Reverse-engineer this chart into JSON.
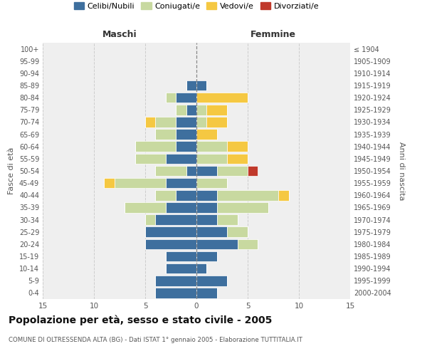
{
  "age_groups_bottom_to_top": [
    "0-4",
    "5-9",
    "10-14",
    "15-19",
    "20-24",
    "25-29",
    "30-34",
    "35-39",
    "40-44",
    "45-49",
    "50-54",
    "55-59",
    "60-64",
    "65-69",
    "70-74",
    "75-79",
    "80-84",
    "85-89",
    "90-94",
    "95-99",
    "100+"
  ],
  "birth_years_bottom_to_top": [
    "2000-2004",
    "1995-1999",
    "1990-1994",
    "1985-1989",
    "1980-1984",
    "1975-1979",
    "1970-1974",
    "1965-1969",
    "1960-1964",
    "1955-1959",
    "1950-1954",
    "1945-1949",
    "1940-1944",
    "1935-1939",
    "1930-1934",
    "1925-1929",
    "1920-1924",
    "1915-1919",
    "1910-1914",
    "1905-1909",
    "≤ 1904"
  ],
  "maschi": {
    "celibi": [
      4,
      4,
      3,
      3,
      5,
      5,
      4,
      3,
      2,
      3,
      1,
      3,
      2,
      2,
      2,
      1,
      2,
      1,
      0,
      0,
      0
    ],
    "coniugati": [
      0,
      0,
      0,
      0,
      0,
      0,
      1,
      4,
      2,
      5,
      3,
      3,
      4,
      2,
      2,
      1,
      1,
      0,
      0,
      0,
      0
    ],
    "vedovi": [
      0,
      0,
      0,
      0,
      0,
      0,
      0,
      0,
      0,
      1,
      0,
      0,
      0,
      0,
      1,
      0,
      0,
      0,
      0,
      0,
      0
    ],
    "divorziati": [
      0,
      0,
      0,
      0,
      0,
      0,
      0,
      0,
      0,
      0,
      0,
      0,
      0,
      0,
      0,
      0,
      0,
      0,
      0,
      0,
      0
    ]
  },
  "femmine": {
    "celibi": [
      2,
      3,
      1,
      2,
      4,
      3,
      2,
      2,
      2,
      0,
      2,
      0,
      0,
      0,
      0,
      0,
      0,
      1,
      0,
      0,
      0
    ],
    "coniugati": [
      0,
      0,
      0,
      0,
      2,
      2,
      2,
      5,
      6,
      3,
      3,
      3,
      3,
      0,
      1,
      1,
      0,
      0,
      0,
      0,
      0
    ],
    "vedovi": [
      0,
      0,
      0,
      0,
      0,
      0,
      0,
      0,
      1,
      0,
      0,
      2,
      2,
      2,
      2,
      2,
      5,
      0,
      0,
      0,
      0
    ],
    "divorziati": [
      0,
      0,
      0,
      0,
      0,
      0,
      0,
      0,
      0,
      0,
      1,
      0,
      0,
      0,
      0,
      0,
      0,
      0,
      0,
      0,
      0
    ]
  },
  "color_celibi": "#3e6f9e",
  "color_coniugati": "#c8d9a0",
  "color_vedovi": "#f5c842",
  "color_divorziati": "#c0392b",
  "xlim": 15,
  "title": "Popolazione per età, sesso e stato civile - 2005",
  "subtitle": "COMUNE DI OLTRESSENDA ALTA (BG) - Dati ISTAT 1° gennaio 2005 - Elaborazione TUTTITALIA.IT",
  "ylabel_left": "Fasce di età",
  "ylabel_right": "Anni di nascita",
  "xlabel_maschi": "Maschi",
  "xlabel_femmine": "Femmine",
  "bg_color": "#efefef",
  "grid_color": "#cccccc"
}
